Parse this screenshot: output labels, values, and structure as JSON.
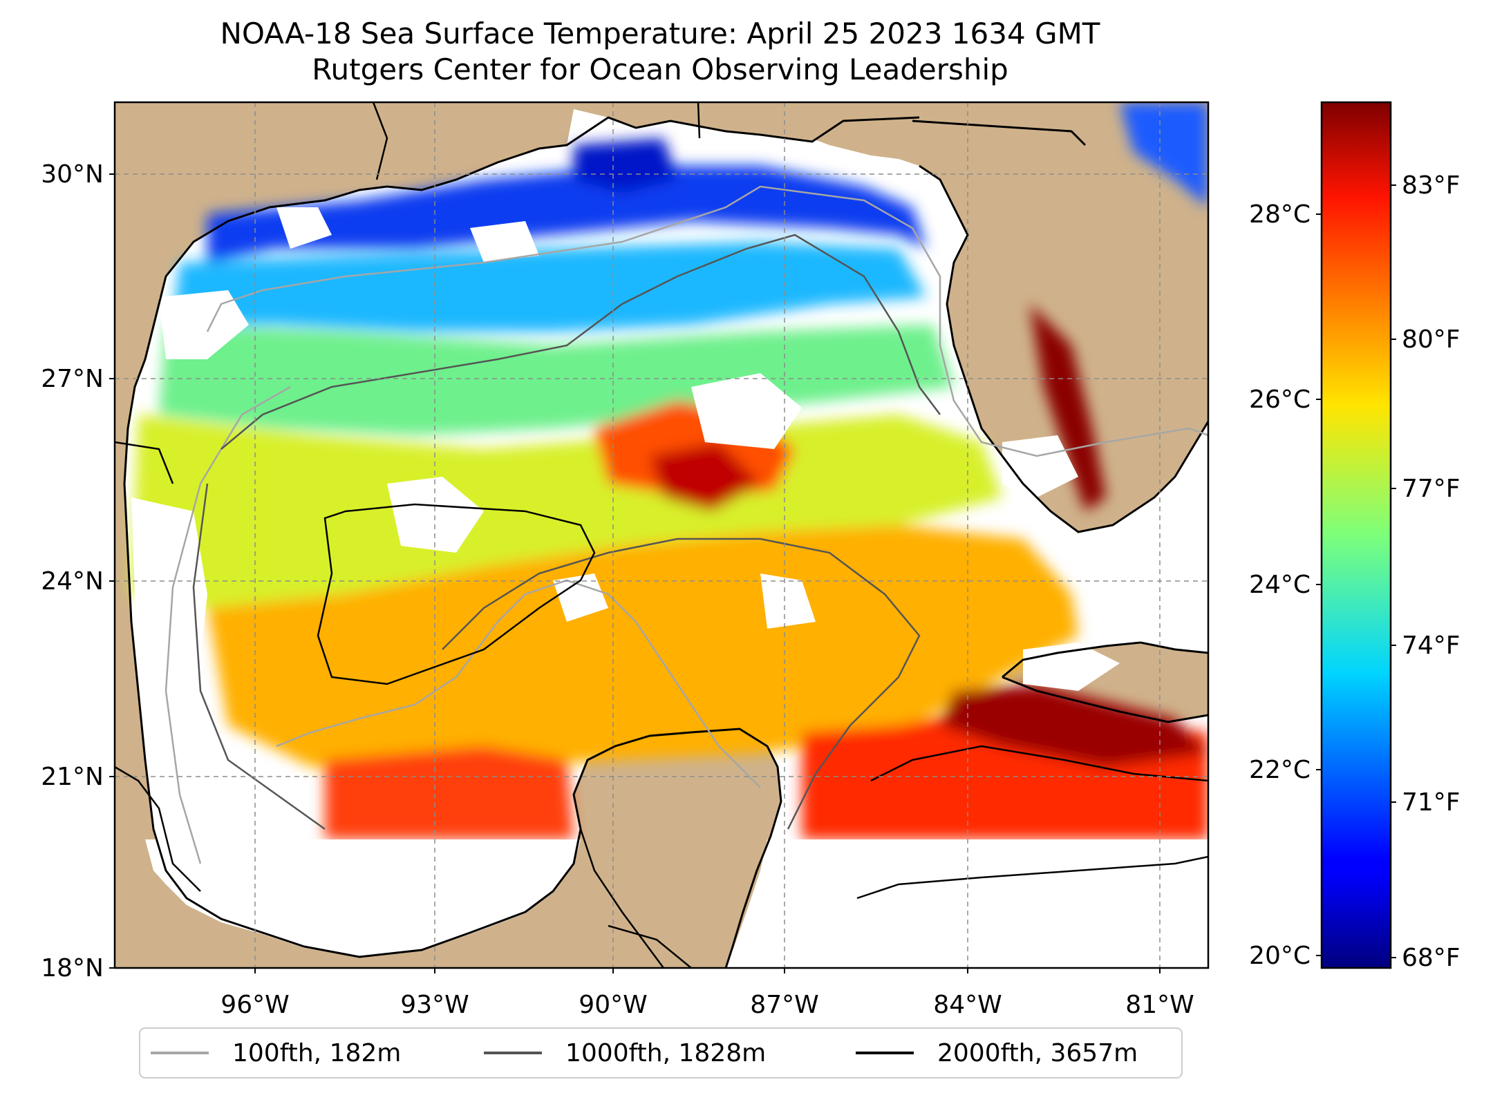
{
  "title": "NOAA-18 Sea Surface Temperature: April 25 2023 1634 GMT",
  "subtitle": "Rutgers Center for Ocean Observing Leadership",
  "map": {
    "lon_range": [
      -98.3,
      -80.3
    ],
    "lat_range": [
      18.0,
      31.0
    ],
    "lat_ticks": [
      {
        "value": 30,
        "label": "30°N"
      },
      {
        "value": 27,
        "label": "27°N"
      },
      {
        "value": 24,
        "label": "24°N"
      },
      {
        "value": 21,
        "label": "21°N"
      },
      {
        "value": 18,
        "label": "18°N"
      }
    ],
    "lon_ticks": [
      {
        "value": -96,
        "label": "96°W"
      },
      {
        "value": -93,
        "label": "93°W"
      },
      {
        "value": -90,
        "label": "90°W"
      },
      {
        "value": -87,
        "label": "87°W"
      },
      {
        "value": -84,
        "label": "84°W"
      },
      {
        "value": -81,
        "label": "81°W"
      }
    ],
    "gridlines": "dashed",
    "land_color": "#cfb28b",
    "colormap": "jet"
  },
  "colorbar": {
    "celsius_ticks": [
      {
        "value": 20,
        "label": "20°C"
      },
      {
        "value": 22,
        "label": "22°C"
      },
      {
        "value": 24,
        "label": "24°C"
      },
      {
        "value": 26,
        "label": "26°C"
      },
      {
        "value": 28,
        "label": "28°C"
      }
    ],
    "fahrenheit_ticks": [
      {
        "value": 68,
        "label": "68°F"
      },
      {
        "value": 71,
        "label": "71°F"
      },
      {
        "value": 74,
        "label": "74°F"
      },
      {
        "value": 77,
        "label": "77°F"
      },
      {
        "value": 80,
        "label": "80°F"
      },
      {
        "value": 83,
        "label": "83°F"
      }
    ],
    "range_c": [
      19.9,
      29.2
    ]
  },
  "legend": {
    "placement": "bottom",
    "items": [
      {
        "label": "100fth, 182m",
        "color": "#a6a6a6"
      },
      {
        "label": "1000fth, 1828m",
        "color": "#555555"
      },
      {
        "label": "2000fth, 3657m",
        "color": "#000000"
      }
    ]
  }
}
